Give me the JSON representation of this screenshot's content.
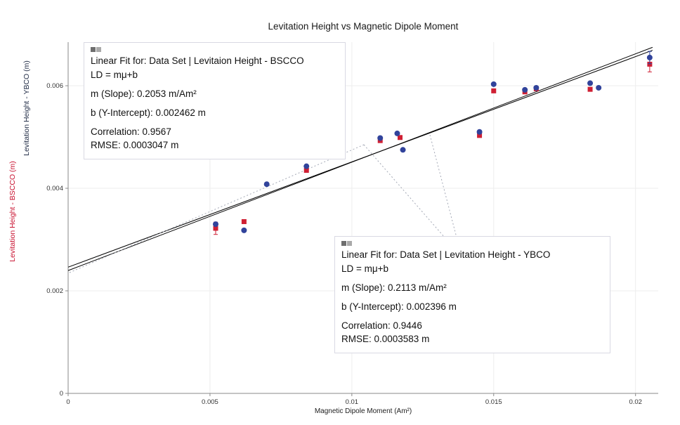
{
  "window": {
    "title": "Levitation Height vs Magnetic Dipole Moment"
  },
  "axes": {
    "x": {
      "title": "Magnetic Dipole Moment (Am²)",
      "ticks": [
        "0",
        "0.005",
        "0.01",
        "0.015",
        "0.02"
      ],
      "tick_values": [
        0,
        0.005,
        0.01,
        0.015,
        0.02
      ]
    },
    "y": {
      "ticks": [
        "0",
        "0.002",
        "0.004",
        "0.006"
      ],
      "tick_values": [
        0,
        0.002,
        0.004,
        0.006
      ],
      "label_bscco": {
        "text": "Levitation Height - BSCCO (m)",
        "color": "#c8102e"
      },
      "label_ybco": {
        "text": "Levitation Height - YBCO (m)",
        "color": "#1f2a44"
      }
    }
  },
  "chart_data": {
    "type": "scatter",
    "title": "Levitation Height vs Magnetic Dipole Moment",
    "xlabel": "Magnetic Dipole Moment (Am²)",
    "ylabels": [
      "Levitation Height - BSCCO (m)",
      "Levitation Height - YBCO (m)"
    ],
    "xlim": [
      0,
      0.0208
    ],
    "ylim": [
      0,
      0.00685
    ],
    "grid": true,
    "series": [
      {
        "id": "bscco",
        "name": "Levitation Height - BSCCO",
        "marker": "square",
        "color": "#cf1f33",
        "points": [
          [
            0.0052,
            0.00322,
            0.00012
          ],
          [
            0.0062,
            0.00335,
            0
          ],
          [
            0.0084,
            0.00435,
            0
          ],
          [
            0.011,
            0.00493,
            0
          ],
          [
            0.0117,
            0.00499,
            0
          ],
          [
            0.0145,
            0.00503,
            0
          ],
          [
            0.015,
            0.0059,
            0
          ],
          [
            0.0161,
            0.00588,
            0
          ],
          [
            0.0165,
            0.00594,
            0
          ],
          [
            0.0184,
            0.00593,
            0
          ],
          [
            0.0205,
            0.00642,
            0.00015
          ]
        ]
      },
      {
        "id": "ybco",
        "name": "Levitation Height - YBCO",
        "marker": "circle",
        "color": "#31439b",
        "points": [
          [
            0.0052,
            0.0033,
            0
          ],
          [
            0.0062,
            0.00318,
            0
          ],
          [
            0.007,
            0.00408,
            0
          ],
          [
            0.0084,
            0.00443,
            0
          ],
          [
            0.011,
            0.00498,
            0
          ],
          [
            0.0116,
            0.00507,
            0
          ],
          [
            0.0118,
            0.00475,
            0
          ],
          [
            0.0145,
            0.0051,
            0
          ],
          [
            0.015,
            0.00603,
            0
          ],
          [
            0.0161,
            0.00592,
            0
          ],
          [
            0.0165,
            0.00596,
            0
          ],
          [
            0.0184,
            0.00605,
            0
          ],
          [
            0.0187,
            0.00596,
            0
          ],
          [
            0.0205,
            0.00655,
            0.00012
          ]
        ]
      }
    ],
    "fits": [
      {
        "id": "bscco",
        "series": "Levitaion Height - BSCCO",
        "equation": "LD = mμ+b",
        "slope": 0.2053,
        "slope_units": "m/Am²",
        "intercept": 0.002462,
        "intercept_units": "m",
        "correlation": 0.9567,
        "rmse": 0.0003047,
        "rmse_units": "m"
      },
      {
        "id": "ybco",
        "series": "Levitation Height - YBCO",
        "equation": "LD = mμ+b",
        "slope": 0.2113,
        "slope_units": "m/Am²",
        "intercept": 0.002396,
        "intercept_units": "m",
        "correlation": 0.9446,
        "rmse": 0.0003583,
        "rmse_units": "m"
      }
    ]
  },
  "fit_boxes": [
    {
      "line1": "Linear Fit for: Data Set | Levitaion Height - BSCCO",
      "line2": "LD = mμ+b",
      "line3": "m (Slope): 0.2053 m/Am²",
      "line4": "b (Y-Intercept): 0.002462 m",
      "line5": "Correlation: 0.9567",
      "line6": "RMSE: 0.0003047 m"
    },
    {
      "line1": "Linear Fit for: Data Set | Levitation Height - YBCO",
      "line2": "LD = mμ+b",
      "line3": "m (Slope): 0.2113 m/Am²",
      "line4": "b (Y-Intercept): 0.002396 m",
      "line5": "Correlation: 0.9446",
      "line6": "RMSE: 0.0003583 m"
    }
  ]
}
